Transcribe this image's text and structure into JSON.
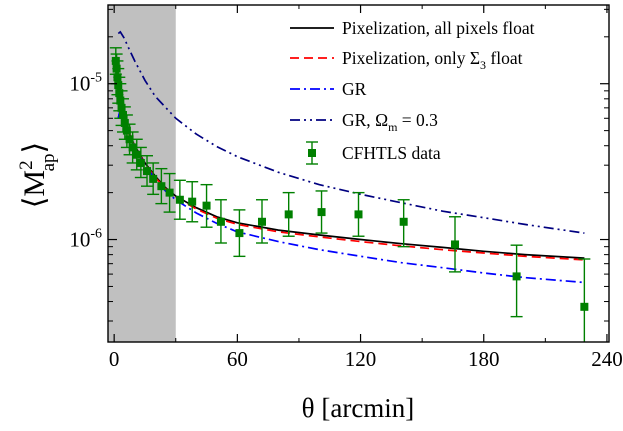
{
  "chart_data": {
    "type": "line",
    "xlabel": "θ [arcmin]",
    "ylabel": {
      "open": "⟨",
      "base": "M",
      "sup": "2",
      "sub": "ap",
      "close": "⟩"
    },
    "x_ticks": [
      0,
      60,
      120,
      180,
      240
    ],
    "x_tick_labels": [
      "0",
      "60",
      "120",
      "180",
      "240"
    ],
    "y_ticks": [
      1e-06,
      1e-05
    ],
    "y_tick_labels": [
      {
        "base": "10",
        "exp": "-6"
      },
      {
        "base": "10",
        "exp": "-5"
      }
    ],
    "xlim": [
      -3,
      241
    ],
    "ylim": [
      2.2e-07,
      3.2e-05
    ],
    "y_scale": "log",
    "grid": false,
    "legend_position": "top-right",
    "shaded_region": {
      "x": [
        -3,
        30
      ],
      "color": "#c0c0c0"
    },
    "series": [
      {
        "name": "Pixelization, all pixels float",
        "legend_text": {
          "pre": "Pixelization, all pixels float",
          "sym": "",
          "sub": "",
          "post": ""
        },
        "style": "solid",
        "color": "#000000",
        "x": [
          2,
          3,
          5,
          7,
          10,
          15,
          20,
          25,
          30,
          40,
          50,
          60,
          80,
          100,
          120,
          140,
          160,
          180,
          200,
          229
        ],
        "y": [
          6e-06,
          6.8e-06,
          5.8e-06,
          4.9e-06,
          4e-06,
          3.1e-06,
          2.55e-06,
          2.15e-06,
          1.9e-06,
          1.6e-06,
          1.4e-06,
          1.28e-06,
          1.15e-06,
          1.07e-06,
          1e-06,
          9.4e-07,
          8.9e-07,
          8.4e-07,
          8e-07,
          7.6e-07
        ]
      },
      {
        "name": "Pixelization, only Σ3 float",
        "legend_text": {
          "pre": "Pixelization, only ",
          "sym": "Σ",
          "sub": "3",
          "post": " float"
        },
        "style": "dashed",
        "color": "#ff0000",
        "x": [
          2,
          3,
          5,
          7,
          10,
          15,
          20,
          25,
          30,
          40,
          50,
          60,
          80,
          100,
          120,
          140,
          160,
          180,
          200,
          229
        ],
        "y": [
          6e-06,
          6.7e-06,
          5.75e-06,
          4.85e-06,
          3.95e-06,
          3.05e-06,
          2.5e-06,
          2.12e-06,
          1.87e-06,
          1.57e-06,
          1.37e-06,
          1.25e-06,
          1.12e-06,
          1.04e-06,
          9.7e-07,
          9.1e-07,
          8.6e-07,
          8.2e-07,
          7.8e-07,
          7.4e-07
        ]
      },
      {
        "name": "GR",
        "legend_text": {
          "pre": "GR",
          "sym": "",
          "sub": "",
          "post": ""
        },
        "style": "dashdot",
        "color": "#0000ff",
        "x": [
          2,
          3,
          5,
          7,
          10,
          15,
          20,
          25,
          30,
          40,
          50,
          60,
          80,
          100,
          120,
          140,
          160,
          180,
          200,
          229
        ],
        "y": [
          6e-06,
          6.9e-06,
          5.8e-06,
          4.8e-06,
          3.9e-06,
          3e-06,
          2.45e-06,
          2.05e-06,
          1.8e-06,
          1.48e-06,
          1.27e-06,
          1.12e-06,
          9.7e-07,
          8.6e-07,
          7.8e-07,
          7.1e-07,
          6.6e-07,
          6.1e-07,
          5.7e-07,
          5.3e-07
        ]
      },
      {
        "name": "GR, Ωm = 0.3",
        "legend_text": {
          "pre": "GR, ",
          "sym": "Ω",
          "sub": "m",
          "post": " = 0.3"
        },
        "style": "dashdotdot",
        "color": "#000080",
        "x": [
          2,
          3,
          5,
          7,
          10,
          15,
          20,
          30,
          40,
          50,
          60,
          80,
          100,
          120,
          140,
          160,
          180,
          200,
          229
        ],
        "y": [
          2.1e-05,
          2.15e-05,
          1.95e-05,
          1.7e-05,
          1.4e-05,
          1.05e-05,
          8.3e-06,
          6e-06,
          4.75e-06,
          3.95e-06,
          3.4e-06,
          2.7e-06,
          2.25e-06,
          1.95e-06,
          1.72e-06,
          1.52e-06,
          1.38e-06,
          1.25e-06,
          1.1e-06
        ]
      }
    ],
    "data_series": {
      "name": "CFHTLS data",
      "legend_text": {
        "pre": "CFHTLS data",
        "sym": "",
        "sub": "",
        "post": ""
      },
      "color": "#008000",
      "points": [
        {
          "x": 0.8,
          "y": 1.4e-05,
          "lo": 1.15e-05,
          "hi": 1.7e-05
        },
        {
          "x": 1.2,
          "y": 1.25e-05,
          "lo": 1e-05,
          "hi": 1.55e-05
        },
        {
          "x": 1.6,
          "y": 1.1e-05,
          "lo": 8.5e-06,
          "hi": 1.4e-05
        },
        {
          "x": 2.0,
          "y": 9.8e-06,
          "lo": 7.5e-06,
          "hi": 1.25e-05
        },
        {
          "x": 2.5,
          "y": 8.7e-06,
          "lo": 6.7e-06,
          "hi": 1.1e-05
        },
        {
          "x": 3.0,
          "y": 7.8e-06,
          "lo": 6e-06,
          "hi": 1e-05
        },
        {
          "x": 3.6,
          "y": 7e-06,
          "lo": 5.4e-06,
          "hi": 9e-06
        },
        {
          "x": 4.3,
          "y": 6.3e-06,
          "lo": 4.9e-06,
          "hi": 8e-06
        },
        {
          "x": 5.2,
          "y": 5.6e-06,
          "lo": 4.4e-06,
          "hi": 7.1e-06
        },
        {
          "x": 6.2,
          "y": 5e-06,
          "lo": 3.9e-06,
          "hi": 6.3e-06
        },
        {
          "x": 7.5,
          "y": 4.4e-06,
          "lo": 3.5e-06,
          "hi": 5.5e-06
        },
        {
          "x": 9.0,
          "y": 3.9e-06,
          "lo": 3.1e-06,
          "hi": 4.9e-06
        },
        {
          "x": 11,
          "y": 3.5e-06,
          "lo": 2.8e-06,
          "hi": 4.4e-06
        },
        {
          "x": 13,
          "y": 3.1e-06,
          "lo": 2.5e-06,
          "hi": 3.9e-06
        },
        {
          "x": 16,
          "y": 2.75e-06,
          "lo": 2.2e-06,
          "hi": 3.45e-06
        },
        {
          "x": 19,
          "y": 2.45e-06,
          "lo": 1.95e-06,
          "hi": 3.1e-06
        },
        {
          "x": 23,
          "y": 2.2e-06,
          "lo": 1.7e-06,
          "hi": 2.85e-06
        },
        {
          "x": 27,
          "y": 2e-06,
          "lo": 1.5e-06,
          "hi": 2.65e-06
        },
        {
          "x": 32,
          "y": 1.8e-06,
          "lo": 1.35e-06,
          "hi": 2.4e-06
        },
        {
          "x": 38,
          "y": 1.75e-06,
          "lo": 1.3e-06,
          "hi": 2.35e-06
        },
        {
          "x": 45,
          "y": 1.65e-06,
          "lo": 1.2e-06,
          "hi": 2.25e-06
        },
        {
          "x": 52,
          "y": 1.3e-06,
          "lo": 9.5e-07,
          "hi": 1.8e-06
        },
        {
          "x": 61,
          "y": 1.1e-06,
          "lo": 7.8e-07,
          "hi": 1.55e-06
        },
        {
          "x": 72,
          "y": 1.3e-06,
          "lo": 9.5e-07,
          "hi": 1.8e-06
        },
        {
          "x": 85,
          "y": 1.45e-06,
          "lo": 1.05e-06,
          "hi": 2e-06
        },
        {
          "x": 101,
          "y": 1.5e-06,
          "lo": 1.1e-06,
          "hi": 2.05e-06
        },
        {
          "x": 119,
          "y": 1.45e-06,
          "lo": 1.05e-06,
          "hi": 2e-06
        },
        {
          "x": 141,
          "y": 1.3e-06,
          "lo": 9e-07,
          "hi": 1.8e-06
        },
        {
          "x": 166,
          "y": 9.3e-07,
          "lo": 6.2e-07,
          "hi": 1.4e-06
        },
        {
          "x": 196,
          "y": 5.8e-07,
          "lo": 3.2e-07,
          "hi": 9.2e-07
        },
        {
          "x": 229,
          "y": 3.7e-07,
          "lo": 2.05e-07,
          "hi": 7.5e-07
        }
      ]
    }
  }
}
